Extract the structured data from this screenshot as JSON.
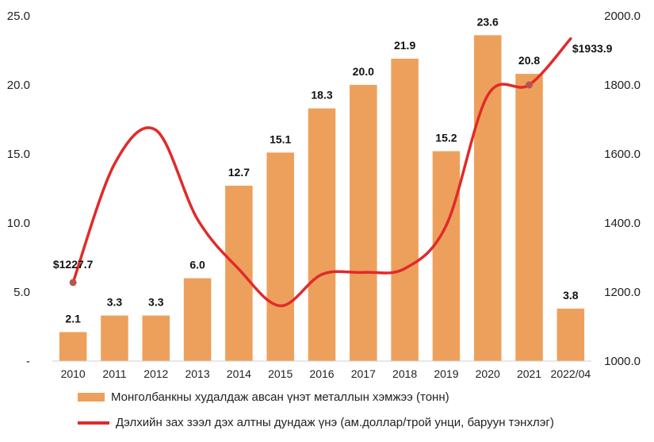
{
  "chart_data": {
    "type": "bar",
    "categories": [
      "2010",
      "2011",
      "2012",
      "2013",
      "2014",
      "2015",
      "2016",
      "2017",
      "2018",
      "2019",
      "2020",
      "2021",
      "2022/04"
    ],
    "series": [
      {
        "name": "Монголбанкны худалдаж авсан үнэт металлын хэмжээ (тонн)",
        "type": "bar",
        "axis": "left",
        "values": [
          2.1,
          3.3,
          3.3,
          6.0,
          12.7,
          15.1,
          18.3,
          20.0,
          21.9,
          15.2,
          23.6,
          20.8,
          3.8
        ],
        "labels": [
          "2.1",
          "3.3",
          "3.3",
          "6.0",
          "12.7",
          "15.1",
          "18.3",
          "20.0",
          "21.9",
          "15.2",
          "23.6",
          "20.8",
          "3.8"
        ],
        "color": "#eda05c"
      },
      {
        "name": "Дэлхийн зах зээл дэх алтны дундаж үнэ (ам.доллар/трой унци, баруун тэнхлэг)",
        "type": "line",
        "axis": "right",
        "values": [
          1227.7,
          1571,
          1669,
          1411,
          1266,
          1160,
          1251,
          1257,
          1268,
          1393,
          1770,
          1800,
          1933.9
        ],
        "point_labels": [
          {
            "index": 0,
            "text": "$1227.7"
          },
          {
            "index": 12,
            "text": "$1933.9"
          }
        ],
        "marked_points": [
          0,
          11
        ],
        "color": "#e12a2a",
        "marker_color": "#b85450"
      }
    ],
    "y_left": {
      "ylim": [
        0,
        25
      ],
      "ticks": [
        "-",
        "5.0",
        "10.0",
        "15.0",
        "20.0",
        "25.0"
      ]
    },
    "y_right": {
      "ylim": [
        1000,
        2000
      ],
      "ticks": [
        "1000.0",
        "1200.0",
        "1400.0",
        "1600.0",
        "1800.0",
        "2000.0"
      ]
    },
    "grid": false,
    "legend_position": "bottom"
  }
}
